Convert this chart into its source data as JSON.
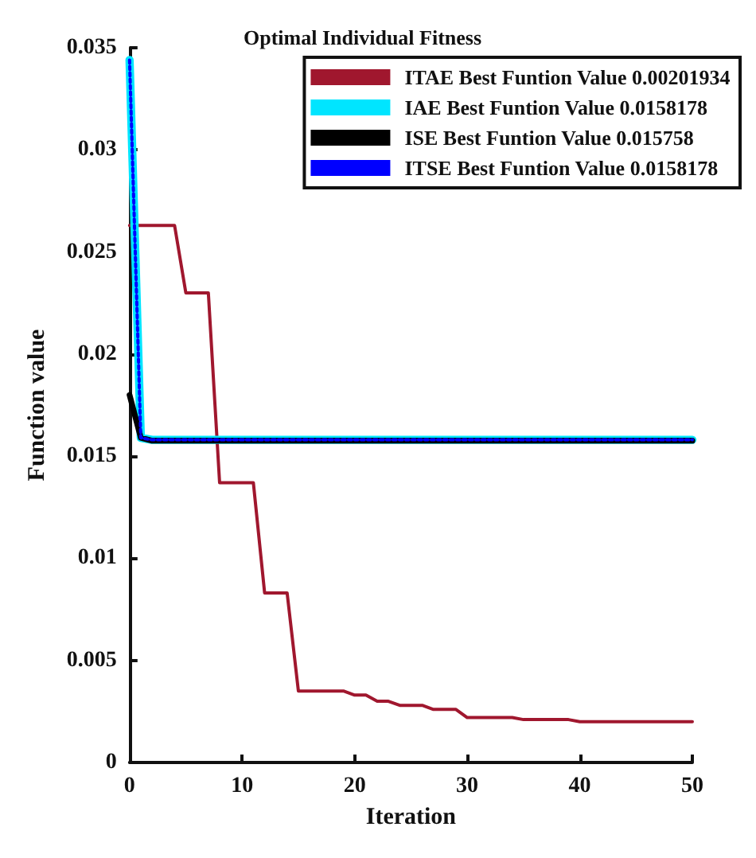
{
  "chart_data": {
    "type": "line",
    "title": "Optimal Individual Fitness",
    "xlabel": "Iteration",
    "ylabel": "Function value",
    "x": [
      0,
      1,
      2,
      3,
      4,
      5,
      6,
      7,
      8,
      9,
      10,
      11,
      12,
      13,
      14,
      15,
      16,
      17,
      18,
      19,
      20,
      21,
      22,
      23,
      24,
      25,
      26,
      27,
      28,
      29,
      30,
      31,
      32,
      33,
      34,
      35,
      36,
      37,
      38,
      39,
      40,
      41,
      42,
      43,
      44,
      45,
      46,
      47,
      48,
      49,
      50
    ],
    "series": [
      {
        "name": "ITAE Best Funtion Value 0.00201934",
        "color": "#a0172e",
        "line_style": "solid",
        "values": [
          0.0263,
          0.0263,
          0.0263,
          0.0263,
          0.0263,
          0.023,
          0.023,
          0.023,
          0.0137,
          0.0137,
          0.0137,
          0.0137,
          0.0083,
          0.0083,
          0.0083,
          0.0035,
          0.0035,
          0.0035,
          0.0035,
          0.0035,
          0.0033,
          0.0033,
          0.003,
          0.003,
          0.0028,
          0.0028,
          0.0028,
          0.0026,
          0.0026,
          0.0026,
          0.0022,
          0.0022,
          0.0022,
          0.0022,
          0.0022,
          0.0021,
          0.0021,
          0.0021,
          0.0021,
          0.0021,
          0.002,
          0.002,
          0.002,
          0.002,
          0.002,
          0.002,
          0.002,
          0.002,
          0.002,
          0.002,
          0.002
        ]
      },
      {
        "name": "IAE Best Funtion Value 0.0158178",
        "color": "#00e5ff",
        "line_style": "solid",
        "values": [
          0.0344,
          0.0159,
          0.0158,
          0.0158,
          0.0158,
          0.0158,
          0.0158,
          0.0158,
          0.0158,
          0.0158,
          0.0158,
          0.0158,
          0.0158,
          0.0158,
          0.0158,
          0.0158,
          0.0158,
          0.0158,
          0.0158,
          0.0158,
          0.0158,
          0.0158,
          0.0158,
          0.0158,
          0.0158,
          0.0158,
          0.0158,
          0.0158,
          0.0158,
          0.0158,
          0.0158,
          0.0158,
          0.0158,
          0.0158,
          0.0158,
          0.0158,
          0.0158,
          0.0158,
          0.0158,
          0.0158,
          0.0158,
          0.0158,
          0.0158,
          0.0158,
          0.0158,
          0.0158,
          0.0158,
          0.0158,
          0.0158,
          0.0158,
          0.0158
        ]
      },
      {
        "name": "ISE Best Funtion Value 0.015758",
        "color": "#000000",
        "line_style": "solid",
        "values": [
          0.018,
          0.0159,
          0.01576,
          0.01576,
          0.01576,
          0.01576,
          0.01576,
          0.01576,
          0.01576,
          0.01576,
          0.01576,
          0.01576,
          0.01576,
          0.01576,
          0.01576,
          0.01576,
          0.01576,
          0.01576,
          0.01576,
          0.01576,
          0.01576,
          0.01576,
          0.01576,
          0.01576,
          0.01576,
          0.01576,
          0.01576,
          0.01576,
          0.01576,
          0.01576,
          0.01576,
          0.01576,
          0.01576,
          0.01576,
          0.01576,
          0.01576,
          0.01576,
          0.01576,
          0.01576,
          0.01576,
          0.01576,
          0.01576,
          0.01576,
          0.01576,
          0.01576,
          0.01576,
          0.01576,
          0.01576,
          0.01576,
          0.01576,
          0.01576
        ]
      },
      {
        "name": "ITSE Best Funtion Value 0.0158178",
        "color": "#0000ff",
        "line_style": "dotted",
        "values": [
          0.0344,
          0.0159,
          0.0158,
          0.0158,
          0.0158,
          0.0158,
          0.0158,
          0.0158,
          0.0158,
          0.0158,
          0.0158,
          0.0158,
          0.0158,
          0.0158,
          0.0158,
          0.0158,
          0.0158,
          0.0158,
          0.0158,
          0.0158,
          0.0158,
          0.0158,
          0.0158,
          0.0158,
          0.0158,
          0.0158,
          0.0158,
          0.0158,
          0.0158,
          0.0158,
          0.0158,
          0.0158,
          0.0158,
          0.0158,
          0.0158,
          0.0158,
          0.0158,
          0.0158,
          0.0158,
          0.0158,
          0.0158,
          0.0158,
          0.0158,
          0.0158,
          0.0158,
          0.0158,
          0.0158,
          0.0158,
          0.0158,
          0.0158,
          0.0158
        ]
      }
    ],
    "xlim": [
      0,
      50
    ],
    "xticks": [
      0,
      10,
      20,
      30,
      40,
      50
    ],
    "ylim": [
      0,
      0.035
    ],
    "yticks": [
      0,
      0.005,
      0.01,
      0.015,
      0.02,
      0.025,
      0.03,
      0.035
    ],
    "legend": "top right",
    "grid": false,
    "marker": "none"
  }
}
